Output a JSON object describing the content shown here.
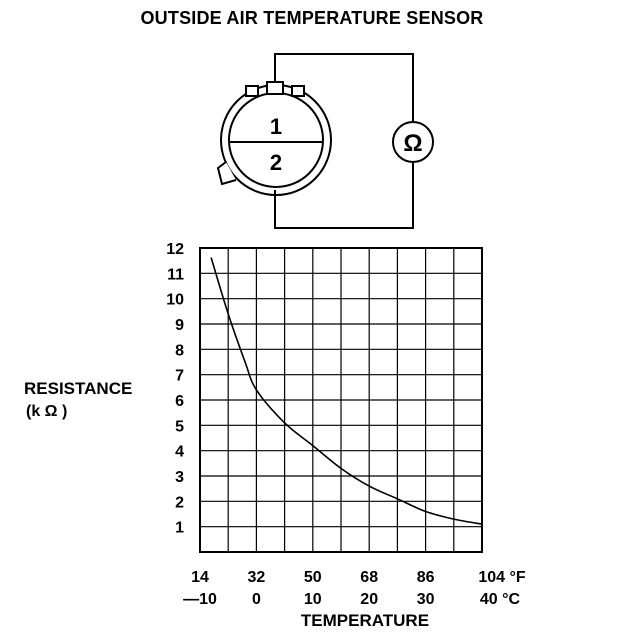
{
  "title": "OUTSIDE AIR TEMPERATURE SENSOR",
  "connector": {
    "terminal_1": "1",
    "terminal_2": "2"
  },
  "meter_symbol": "Ω",
  "chart_data": {
    "type": "line",
    "ylabel_line1": "RESISTANCE",
    "ylabel_line2": "(k Ω )",
    "xlabel": "TEMPERATURE",
    "y_ticks": [
      "1",
      "2",
      "3",
      "4",
      "5",
      "6",
      "7",
      "8",
      "9",
      "10",
      "11",
      "12"
    ],
    "x_ticks_f": [
      "14",
      "32",
      "50",
      "68",
      "86",
      "104 °F"
    ],
    "x_ticks_c": [
      "—10",
      "0",
      "10",
      "20",
      "30",
      "40 °C"
    ],
    "ylim": [
      0,
      12
    ],
    "xlim_c": [
      -10,
      40
    ],
    "grid": true,
    "series": [
      {
        "x_c": [
          -8,
          -5,
          -2,
          0,
          5,
          10,
          15,
          20,
          25,
          30,
          35,
          40
        ],
        "y_kohm": [
          11.6,
          9.4,
          7.5,
          6.4,
          5.1,
          4.2,
          3.3,
          2.6,
          2.1,
          1.6,
          1.3,
          1.1
        ]
      }
    ]
  }
}
